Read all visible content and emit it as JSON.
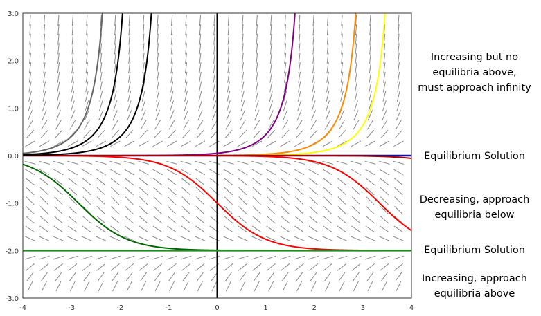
{
  "chart_data": {
    "type": "line",
    "title": "",
    "xlabel": "",
    "ylabel": "",
    "xlim": [
      -4,
      4
    ],
    "ylim": [
      -3,
      3
    ],
    "grid": false,
    "direction_field": "dy/dt = y(y+2)",
    "x_ticks": [
      "-4",
      "-3",
      "-2",
      "-1",
      "0",
      "1",
      "2",
      "3",
      "4"
    ],
    "y_ticks": [
      "3.0",
      "2.0",
      "1.0",
      "0.0",
      "-1.0",
      "-2.0",
      "-3.0"
    ],
    "series": [
      {
        "color": "#800080",
        "y0": 0.05
      },
      {
        "color": "#ff8c00",
        "y0": 0.004
      },
      {
        "color": "#ffff00",
        "y0": 0.0012
      },
      {
        "color": "#1010aa",
        "y0": 0
      },
      {
        "color": "#ff0000",
        "y0": -0.0025
      },
      {
        "color": "#ff0000",
        "y0": -1
      },
      {
        "color": "#aa0000",
        "y0": -2e-05
      },
      {
        "color": "#006400",
        "y0": -1.9934
      },
      {
        "color": "#228b22",
        "y0": -2
      },
      {
        "color": "#666666",
        "y0": -2.03
      },
      {
        "color": "#000000",
        "y0": -2.07
      },
      {
        "color": "#000000",
        "y0": -2.25
      }
    ],
    "annotations": [
      "Increasing but no",
      "equilibria above,",
      "must approach infinity",
      "Equilibrium Solution",
      "Decreasing, approach",
      "equilibria below",
      "Equilibrium Solution",
      "Increasing, approach",
      "equilibria above"
    ]
  }
}
